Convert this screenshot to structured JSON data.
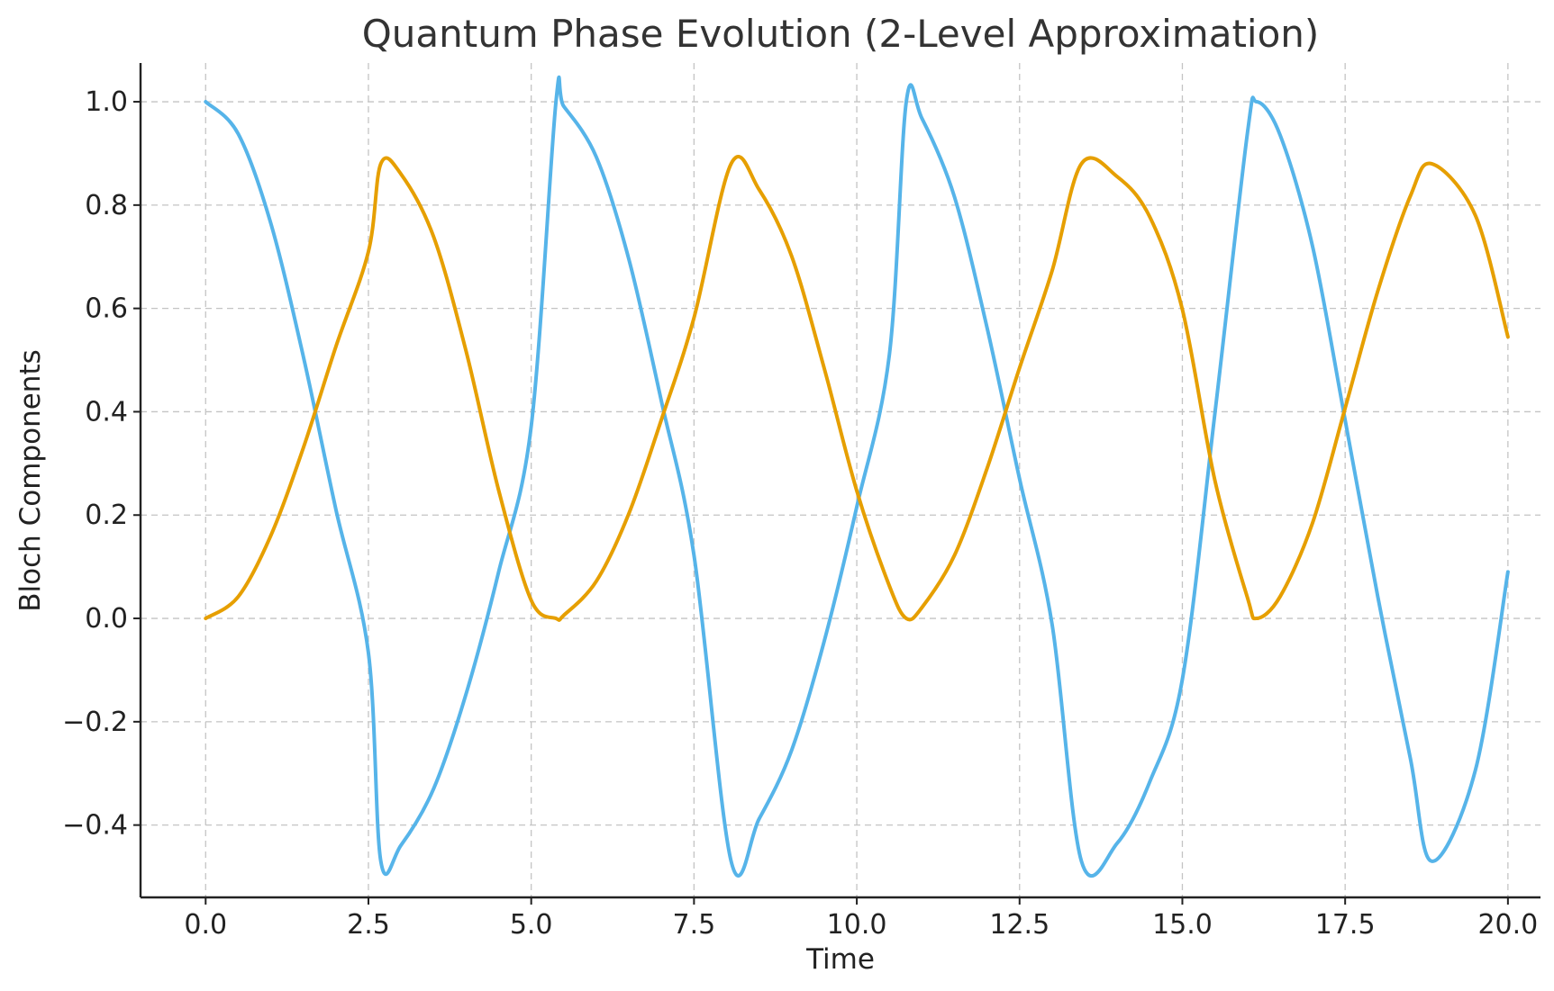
{
  "chart_data": {
    "type": "line",
    "title": "Quantum Phase Evolution (2-Level Approximation)",
    "xlabel": "Time",
    "ylabel": "Bloch Components",
    "xlim": [
      -1.0,
      20.5
    ],
    "ylim": [
      -0.54,
      1.075
    ],
    "xticks": [
      0.0,
      2.5,
      5.0,
      7.5,
      10.0,
      12.5,
      15.0,
      17.5,
      20.0
    ],
    "xtick_labels": [
      "0.0",
      "2.5",
      "5.0",
      "7.5",
      "10.0",
      "12.5",
      "15.0",
      "17.5",
      "20.0"
    ],
    "yticks": [
      -0.4,
      -0.2,
      0.0,
      0.2,
      0.4,
      0.6,
      0.8,
      1.0
    ],
    "ytick_labels": [
      "−0.4",
      "−0.2",
      "0.0",
      "0.2",
      "0.4",
      "0.6",
      "0.8",
      "1.0"
    ],
    "grid": true,
    "legend": "none",
    "series": [
      {
        "color": "#56b4e9",
        "x": [
          0.0,
          0.5,
          1.0,
          1.5,
          2.0,
          2.5,
          2.69,
          3.0,
          3.5,
          4.0,
          4.5,
          5.0,
          5.38,
          5.5,
          6.0,
          6.5,
          7.0,
          7.5,
          8.07,
          8.5,
          9.0,
          9.5,
          10.0,
          10.5,
          10.76,
          11.0,
          11.5,
          12.0,
          12.5,
          13.0,
          13.45,
          14.0,
          14.5,
          15.0,
          15.5,
          16.0,
          16.14,
          16.5,
          17.0,
          17.5,
          18.0,
          18.5,
          18.83,
          19.5,
          20.0
        ],
        "y": [
          1.0,
          0.938,
          0.765,
          0.507,
          0.211,
          -0.067,
          -0.47,
          -0.439,
          -0.33,
          -0.146,
          0.09,
          0.372,
          1.0,
          0.991,
          0.893,
          0.695,
          0.42,
          0.122,
          -0.47,
          -0.388,
          -0.255,
          -0.044,
          0.216,
          0.51,
          1.0,
          0.968,
          0.816,
          0.563,
          0.27,
          -0.012,
          -0.47,
          -0.435,
          -0.316,
          -0.118,
          0.397,
          0.94,
          1.0,
          0.936,
          0.72,
          0.384,
          0.043,
          -0.27,
          -0.47,
          -0.294,
          0.09
        ]
      },
      {
        "color": "#e69f00",
        "x": [
          0.0,
          0.5,
          1.0,
          1.5,
          2.0,
          2.5,
          2.69,
          3.0,
          3.5,
          4.0,
          4.5,
          5.0,
          5.38,
          5.5,
          6.0,
          6.5,
          7.0,
          7.5,
          8.07,
          8.5,
          9.0,
          9.5,
          10.0,
          10.5,
          10.76,
          11.0,
          11.5,
          12.0,
          12.5,
          13.0,
          13.45,
          14.0,
          14.5,
          15.0,
          15.5,
          16.0,
          16.14,
          16.5,
          17.0,
          17.5,
          18.0,
          18.5,
          18.83,
          19.5,
          20.0
        ],
        "y": [
          0.0,
          0.042,
          0.16,
          0.33,
          0.526,
          0.71,
          0.88,
          0.86,
          0.739,
          0.517,
          0.248,
          0.035,
          0.0,
          0.006,
          0.072,
          0.203,
          0.385,
          0.582,
          0.88,
          0.83,
          0.701,
          0.484,
          0.247,
          0.063,
          0.0,
          0.021,
          0.122,
          0.29,
          0.485,
          0.673,
          0.88,
          0.855,
          0.777,
          0.598,
          0.267,
          0.04,
          0.0,
          0.042,
          0.185,
          0.407,
          0.633,
          0.817,
          0.88,
          0.78,
          0.545
        ]
      }
    ]
  }
}
